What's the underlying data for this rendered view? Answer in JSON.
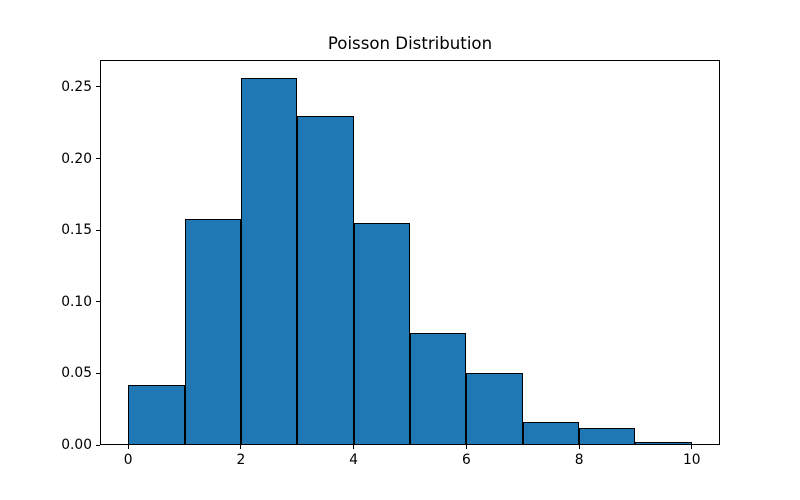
{
  "chart_data": {
    "type": "bar",
    "subtype": "histogram",
    "title": "Poisson Distribution",
    "xlabel": "",
    "ylabel": "",
    "bin_edges": [
      0,
      1,
      2,
      3,
      4,
      5,
      6,
      7,
      8,
      9,
      10
    ],
    "values": [
      0.042,
      0.158,
      0.256,
      0.23,
      0.155,
      0.078,
      0.05,
      0.016,
      0.012,
      0.002
    ],
    "xlim": [
      -0.5,
      10.5
    ],
    "ylim": [
      0,
      0.2688
    ],
    "xticks": {
      "values": [
        0,
        2,
        4,
        6,
        8,
        10
      ],
      "labels": [
        "0",
        "2",
        "4",
        "6",
        "8",
        "10"
      ]
    },
    "yticks": {
      "values": [
        0.0,
        0.05,
        0.1,
        0.15,
        0.2,
        0.25
      ],
      "labels": [
        "0.00",
        "0.05",
        "0.10",
        "0.15",
        "0.20",
        "0.25"
      ]
    },
    "grid": false,
    "legend": null,
    "bar_color": "#1f77b4",
    "bar_edge_color": "#000000",
    "spine_color": "#000000",
    "text_color": "#000000",
    "background_color": "#ffffff"
  }
}
